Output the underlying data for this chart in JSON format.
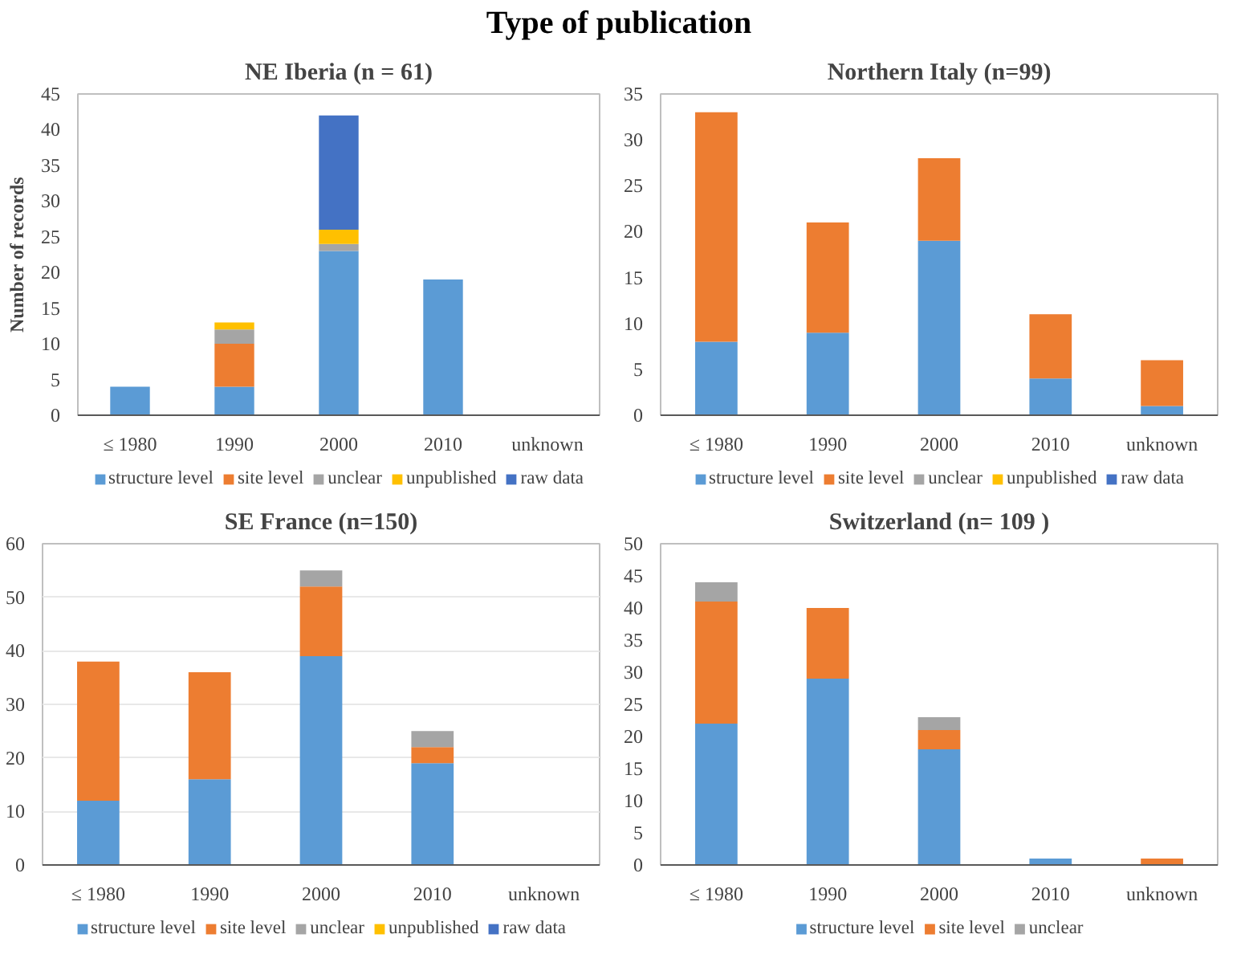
{
  "chart_data": [
    {
      "type": "bar",
      "title": "NE Iberia (n = 61)",
      "annotations": [
        "Type of publication"
      ],
      "ylabel": "Number of records",
      "stacked": true,
      "categories": [
        "≤ 1980",
        "1990",
        "2000",
        "2010",
        "unknown"
      ],
      "ylim": [
        0,
        45
      ],
      "yticks": [
        0,
        5,
        10,
        15,
        20,
        25,
        30,
        35,
        40,
        45
      ],
      "grid": false,
      "legend": "bottom",
      "series": [
        {
          "name": "structure level",
          "color": "#5b9bd5",
          "values": [
            4,
            4,
            23,
            19,
            0
          ]
        },
        {
          "name": "site level",
          "color": "#ed7d31",
          "values": [
            0,
            6,
            0,
            0,
            0
          ]
        },
        {
          "name": "unclear",
          "color": "#a5a5a5",
          "values": [
            0,
            2,
            1,
            0,
            0
          ]
        },
        {
          "name": "unpublished",
          "color": "#ffc000",
          "values": [
            0,
            1,
            2,
            0,
            0
          ]
        },
        {
          "name": "raw data",
          "color": "#4472c4",
          "values": [
            0,
            0,
            16,
            0,
            0
          ]
        }
      ]
    },
    {
      "type": "bar",
      "title": "Northern Italy (n=99)",
      "stacked": true,
      "categories": [
        "≤ 1980",
        "1990",
        "2000",
        "2010",
        "unknown"
      ],
      "ylim": [
        0,
        35
      ],
      "yticks": [
        0,
        5,
        10,
        15,
        20,
        25,
        30,
        35
      ],
      "grid": false,
      "legend": "bottom",
      "series": [
        {
          "name": "structure level",
          "color": "#5b9bd5",
          "values": [
            8,
            9,
            19,
            4,
            1
          ]
        },
        {
          "name": "site level",
          "color": "#ed7d31",
          "values": [
            25,
            12,
            9,
            7,
            5
          ]
        },
        {
          "name": "unclear",
          "color": "#a5a5a5",
          "values": [
            0,
            0,
            0,
            0,
            0
          ]
        },
        {
          "name": "unpublished",
          "color": "#ffc000",
          "values": [
            0,
            0,
            0,
            0,
            0
          ]
        },
        {
          "name": "raw data",
          "color": "#4472c4",
          "values": [
            0,
            0,
            0,
            0,
            0
          ]
        }
      ]
    },
    {
      "type": "bar",
      "title": "SE France (n=150)",
      "stacked": true,
      "categories": [
        "≤ 1980",
        "1990",
        "2000",
        "2010",
        "unknown"
      ],
      "ylim": [
        0,
        60
      ],
      "yticks": [
        0,
        10,
        20,
        30,
        40,
        50,
        60
      ],
      "grid": "y",
      "legend": "bottom",
      "series": [
        {
          "name": "structure level",
          "color": "#5b9bd5",
          "values": [
            12,
            16,
            39,
            19,
            0
          ]
        },
        {
          "name": "site level",
          "color": "#ed7d31",
          "values": [
            26,
            20,
            13,
            3,
            0
          ]
        },
        {
          "name": "unclear",
          "color": "#a5a5a5",
          "values": [
            0,
            0,
            3,
            3,
            0
          ]
        },
        {
          "name": "unpublished",
          "color": "#ffc000",
          "values": [
            0,
            0,
            0,
            0,
            0
          ]
        },
        {
          "name": "raw data",
          "color": "#4472c4",
          "values": [
            0,
            0,
            0,
            0,
            0
          ]
        }
      ]
    },
    {
      "type": "bar",
      "title": "Switzerland (n= 109 )",
      "stacked": true,
      "categories": [
        "≤ 1980",
        "1990",
        "2000",
        "2010",
        "unknown"
      ],
      "ylim": [
        0,
        50
      ],
      "yticks": [
        0,
        5,
        10,
        15,
        20,
        25,
        30,
        35,
        40,
        45,
        50
      ],
      "grid": false,
      "legend": "bottom",
      "series": [
        {
          "name": "structure level",
          "color": "#5b9bd5",
          "values": [
            22,
            29,
            18,
            1,
            0
          ]
        },
        {
          "name": "site level",
          "color": "#ed7d31",
          "values": [
            19,
            11,
            3,
            0,
            1
          ]
        },
        {
          "name": "unclear",
          "color": "#a5a5a5",
          "values": [
            3,
            0,
            2,
            0,
            0
          ]
        }
      ]
    }
  ]
}
